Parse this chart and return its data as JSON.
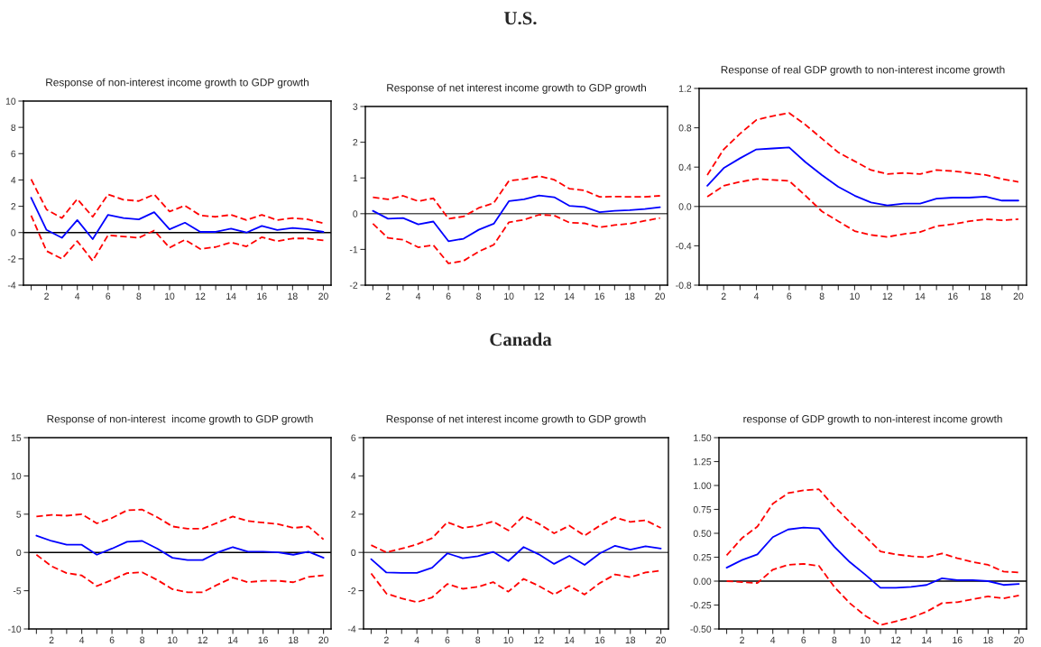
{
  "chart_data": [
    {
      "type": "line",
      "title": "Response of non-interest income growth to GDP growth",
      "annotations": [
        "U.S."
      ],
      "x": [
        1,
        2,
        3,
        4,
        5,
        6,
        7,
        8,
        9,
        10,
        11,
        12,
        13,
        14,
        15,
        16,
        17,
        18,
        19,
        20
      ],
      "xlim": [
        0.5,
        20.5
      ],
      "xticks": [
        {
          "value": 1,
          "label": null
        },
        2,
        {
          "value": 3,
          "label": null
        },
        4,
        {
          "value": 5,
          "label": null
        },
        6,
        {
          "value": 7,
          "label": null
        },
        8,
        {
          "value": 9,
          "label": null
        },
        10,
        {
          "value": 11,
          "label": null
        },
        12,
        {
          "value": 13,
          "label": null
        },
        14,
        {
          "value": 15,
          "label": null
        },
        16,
        {
          "value": 17,
          "label": null
        },
        18,
        {
          "value": 19,
          "label": null
        },
        20
      ],
      "ylim": [
        -4,
        10
      ],
      "yticks": [
        -4,
        -2,
        0,
        2,
        4,
        6,
        8,
        10
      ],
      "grid": false,
      "legend": false,
      "ref_lines": [
        {
          "axis": "y",
          "value": 0,
          "color": "#000000"
        }
      ],
      "series": [
        {
          "color": "#ff0000",
          "line_style": "dashed",
          "values": [
            4.05,
            1.75,
            1.1,
            2.55,
            1.2,
            2.9,
            2.5,
            2.4,
            2.9,
            1.6,
            2.05,
            1.3,
            1.2,
            1.35,
            0.95,
            1.35,
            0.95,
            1.1,
            1.0,
            0.7
          ]
        },
        {
          "color": "#0000ff",
          "line_style": "solid",
          "values": [
            2.65,
            0.2,
            -0.4,
            0.95,
            -0.5,
            1.35,
            1.1,
            1.0,
            1.55,
            0.25,
            0.75,
            0.05,
            0.05,
            0.3,
            0.0,
            0.5,
            0.2,
            0.35,
            0.25,
            0.05
          ]
        },
        {
          "color": "#ff0000",
          "line_style": "dashed",
          "values": [
            1.3,
            -1.4,
            -2.0,
            -0.65,
            -2.15,
            -0.2,
            -0.3,
            -0.4,
            0.15,
            -1.15,
            -0.55,
            -1.25,
            -1.1,
            -0.75,
            -1.05,
            -0.35,
            -0.65,
            -0.45,
            -0.45,
            -0.6
          ]
        }
      ]
    },
    {
      "type": "line",
      "title": "Response of net interest income growth to GDP growth",
      "x": [
        1,
        2,
        3,
        4,
        5,
        6,
        7,
        8,
        9,
        10,
        11,
        12,
        13,
        14,
        15,
        16,
        17,
        18,
        19,
        20
      ],
      "xlim": [
        0.5,
        20.5
      ],
      "xticks": [
        {
          "value": 1,
          "label": null
        },
        2,
        {
          "value": 3,
          "label": null
        },
        4,
        {
          "value": 5,
          "label": null
        },
        6,
        {
          "value": 7,
          "label": null
        },
        8,
        {
          "value": 9,
          "label": null
        },
        10,
        {
          "value": 11,
          "label": null
        },
        12,
        {
          "value": 13,
          "label": null
        },
        14,
        {
          "value": 15,
          "label": null
        },
        16,
        {
          "value": 17,
          "label": null
        },
        18,
        {
          "value": 19,
          "label": null
        },
        20
      ],
      "ylim": [
        -2,
        3
      ],
      "yticks": [
        -2,
        -1,
        0,
        1,
        2,
        3
      ],
      "grid": false,
      "legend": false,
      "ref_lines": [
        {
          "axis": "y",
          "value": 0,
          "color": "#555555"
        }
      ],
      "series": [
        {
          "color": "#ff0000",
          "line_style": "dashed",
          "values": [
            0.46,
            0.4,
            0.5,
            0.35,
            0.43,
            -0.14,
            -0.08,
            0.16,
            0.3,
            0.92,
            0.97,
            1.05,
            0.95,
            0.7,
            0.65,
            0.47,
            0.48,
            0.47,
            0.47,
            0.5
          ]
        },
        {
          "color": "#0000ff",
          "line_style": "solid",
          "values": [
            0.08,
            -0.14,
            -0.12,
            -0.3,
            -0.22,
            -0.77,
            -0.7,
            -0.45,
            -0.28,
            0.35,
            0.4,
            0.51,
            0.46,
            0.22,
            0.19,
            0.04,
            0.08,
            0.1,
            0.13,
            0.18
          ]
        },
        {
          "color": "#ff0000",
          "line_style": "dashed",
          "values": [
            -0.28,
            -0.68,
            -0.73,
            -0.94,
            -0.88,
            -1.39,
            -1.32,
            -1.06,
            -0.87,
            -0.24,
            -0.17,
            -0.03,
            -0.05,
            -0.25,
            -0.27,
            -0.38,
            -0.32,
            -0.28,
            -0.2,
            -0.12
          ]
        }
      ]
    },
    {
      "type": "line",
      "title": "Response of real GDP growth to non-interest income growth",
      "x": [
        1,
        2,
        3,
        4,
        5,
        6,
        7,
        8,
        9,
        10,
        11,
        12,
        13,
        14,
        15,
        16,
        17,
        18,
        19,
        20
      ],
      "xlim": [
        0.5,
        20.5
      ],
      "xticks": [
        {
          "value": 1,
          "label": null
        },
        2,
        {
          "value": 3,
          "label": null
        },
        4,
        {
          "value": 5,
          "label": null
        },
        6,
        {
          "value": 7,
          "label": null
        },
        8,
        {
          "value": 9,
          "label": null
        },
        10,
        {
          "value": 11,
          "label": null
        },
        12,
        {
          "value": 13,
          "label": null
        },
        14,
        {
          "value": 15,
          "label": null
        },
        16,
        {
          "value": 17,
          "label": null
        },
        18,
        {
          "value": 19,
          "label": null
        },
        20
      ],
      "ylim": [
        -0.8,
        1.2
      ],
      "yticks": [
        -0.8,
        -0.4,
        {
          "value": 0,
          "label": "0.0"
        },
        0.4,
        0.8,
        1.2
      ],
      "grid": false,
      "legend": false,
      "ref_lines": [
        {
          "axis": "y",
          "value": 0,
          "color": "#555555"
        }
      ],
      "series": [
        {
          "color": "#ff0000",
          "line_style": "dashed",
          "values": [
            0.32,
            0.58,
            0.74,
            0.88,
            0.92,
            0.95,
            0.83,
            0.69,
            0.55,
            0.46,
            0.37,
            0.33,
            0.34,
            0.33,
            0.37,
            0.36,
            0.34,
            0.32,
            0.28,
            0.25
          ]
        },
        {
          "color": "#0000ff",
          "line_style": "solid",
          "values": [
            0.21,
            0.39,
            0.49,
            0.58,
            0.59,
            0.6,
            0.45,
            0.32,
            0.2,
            0.11,
            0.04,
            0.01,
            0.03,
            0.03,
            0.08,
            0.09,
            0.09,
            0.1,
            0.06,
            0.06
          ]
        },
        {
          "color": "#ff0000",
          "line_style": "dashed",
          "values": [
            0.1,
            0.21,
            0.25,
            0.28,
            0.27,
            0.26,
            0.11,
            -0.05,
            -0.15,
            -0.25,
            -0.29,
            -0.31,
            -0.28,
            -0.26,
            -0.2,
            -0.18,
            -0.15,
            -0.13,
            -0.14,
            -0.13
          ]
        }
      ]
    },
    {
      "type": "line",
      "title": "Response of non-interest  income growth to GDP growth",
      "annotations": [
        "Canada"
      ],
      "x": [
        1,
        2,
        3,
        4,
        5,
        6,
        7,
        8,
        9,
        10,
        11,
        12,
        13,
        14,
        15,
        16,
        17,
        18,
        19,
        20
      ],
      "xlim": [
        0.5,
        20.5
      ],
      "xticks": [
        {
          "value": 1,
          "label": null
        },
        2,
        {
          "value": 3,
          "label": null
        },
        4,
        {
          "value": 5,
          "label": null
        },
        6,
        {
          "value": 7,
          "label": null
        },
        8,
        {
          "value": 9,
          "label": null
        },
        10,
        {
          "value": 11,
          "label": null
        },
        12,
        {
          "value": 13,
          "label": null
        },
        14,
        {
          "value": 15,
          "label": null
        },
        16,
        {
          "value": 17,
          "label": null
        },
        18,
        {
          "value": 19,
          "label": null
        },
        20
      ],
      "ylim": [
        -10,
        15
      ],
      "yticks": [
        -10,
        -5,
        0,
        5,
        10,
        15
      ],
      "grid": false,
      "legend": false,
      "ref_lines": [
        {
          "axis": "y",
          "value": 0,
          "color": "#000000"
        }
      ],
      "series": [
        {
          "color": "#ff0000",
          "line_style": "dashed",
          "values": [
            4.7,
            4.9,
            4.8,
            5.0,
            3.8,
            4.5,
            5.5,
            5.6,
            4.6,
            3.4,
            3.1,
            3.1,
            3.9,
            4.7,
            4.1,
            3.9,
            3.7,
            3.2,
            3.4,
            1.7
          ]
        },
        {
          "color": "#0000ff",
          "line_style": "solid",
          "values": [
            2.2,
            1.5,
            1.0,
            1.0,
            -0.3,
            0.5,
            1.4,
            1.5,
            0.5,
            -0.7,
            -1.0,
            -1.0,
            0.0,
            0.7,
            0.1,
            0.1,
            0.0,
            -0.3,
            0.1,
            -0.7
          ]
        },
        {
          "color": "#ff0000",
          "line_style": "dashed",
          "values": [
            -0.3,
            -1.8,
            -2.7,
            -3.0,
            -4.4,
            -3.6,
            -2.7,
            -2.6,
            -3.6,
            -4.8,
            -5.2,
            -5.2,
            -4.2,
            -3.3,
            -3.9,
            -3.7,
            -3.7,
            -3.9,
            -3.2,
            -3.0
          ]
        }
      ]
    },
    {
      "type": "line",
      "title": "Response of net interest income growth to GDP growth",
      "x": [
        1,
        2,
        3,
        4,
        5,
        6,
        7,
        8,
        9,
        10,
        11,
        12,
        13,
        14,
        15,
        16,
        17,
        18,
        19,
        20
      ],
      "xlim": [
        0.5,
        20.5
      ],
      "xticks": [
        {
          "value": 1,
          "label": null
        },
        2,
        {
          "value": 3,
          "label": null
        },
        4,
        {
          "value": 5,
          "label": null
        },
        6,
        {
          "value": 7,
          "label": null
        },
        8,
        {
          "value": 9,
          "label": null
        },
        10,
        {
          "value": 11,
          "label": null
        },
        12,
        {
          "value": 13,
          "label": null
        },
        14,
        {
          "value": 15,
          "label": null
        },
        16,
        {
          "value": 17,
          "label": null
        },
        18,
        {
          "value": 19,
          "label": null
        },
        20
      ],
      "ylim": [
        -4,
        6
      ],
      "yticks": [
        -4,
        -2,
        0,
        2,
        4,
        6
      ],
      "grid": false,
      "legend": false,
      "ref_lines": [
        {
          "axis": "y",
          "value": 0,
          "color": "#555555"
        }
      ],
      "series": [
        {
          "color": "#ff0000",
          "line_style": "dashed",
          "values": [
            0.38,
            0.0,
            0.2,
            0.42,
            0.75,
            1.58,
            1.28,
            1.4,
            1.62,
            1.15,
            1.9,
            1.5,
            1.0,
            1.4,
            0.88,
            1.4,
            1.83,
            1.6,
            1.68,
            1.28
          ]
        },
        {
          "color": "#0000ff",
          "line_style": "solid",
          "values": [
            -0.35,
            -1.05,
            -1.07,
            -1.07,
            -0.8,
            -0.05,
            -0.3,
            -0.2,
            0.03,
            -0.45,
            0.28,
            -0.1,
            -0.6,
            -0.18,
            -0.65,
            -0.05,
            0.35,
            0.15,
            0.32,
            0.2
          ]
        },
        {
          "color": "#ff0000",
          "line_style": "dashed",
          "values": [
            -1.1,
            -2.15,
            -2.4,
            -2.6,
            -2.35,
            -1.65,
            -1.9,
            -1.8,
            -1.55,
            -2.05,
            -1.38,
            -1.75,
            -2.2,
            -1.75,
            -2.2,
            -1.6,
            -1.15,
            -1.3,
            -1.05,
            -0.95
          ]
        }
      ]
    },
    {
      "type": "line",
      "title": "response of GDP growth to non-interest income growth",
      "x": [
        1,
        2,
        3,
        4,
        5,
        6,
        7,
        8,
        9,
        10,
        11,
        12,
        13,
        14,
        15,
        16,
        17,
        18,
        19,
        20
      ],
      "xlim": [
        0.5,
        20.5
      ],
      "xticks": [
        {
          "value": 1,
          "label": null
        },
        2,
        {
          "value": 3,
          "label": null
        },
        4,
        {
          "value": 5,
          "label": null
        },
        6,
        {
          "value": 7,
          "label": null
        },
        8,
        {
          "value": 9,
          "label": null
        },
        10,
        {
          "value": 11,
          "label": null
        },
        12,
        {
          "value": 13,
          "label": null
        },
        14,
        {
          "value": 15,
          "label": null
        },
        16,
        {
          "value": 17,
          "label": null
        },
        18,
        {
          "value": 19,
          "label": null
        },
        20
      ],
      "ylim": [
        -0.5,
        1.5
      ],
      "yticks": [
        {
          "value": -0.5,
          "label": "-0.50"
        },
        {
          "value": -0.25,
          "label": "-0.25"
        },
        {
          "value": 0,
          "label": "0.00"
        },
        {
          "value": 0.25,
          "label": "0.25"
        },
        {
          "value": 0.5,
          "label": "0.50"
        },
        {
          "value": 0.75,
          "label": "0.75"
        },
        {
          "value": 1,
          "label": "1.00"
        },
        {
          "value": 1.25,
          "label": "1.25"
        },
        {
          "value": 1.5,
          "label": "1.50"
        }
      ],
      "grid": false,
      "legend": false,
      "ref_lines": [
        {
          "axis": "y",
          "value": 0,
          "color": "#000000"
        }
      ],
      "series": [
        {
          "color": "#ff0000",
          "line_style": "dashed",
          "values": [
            0.27,
            0.45,
            0.57,
            0.81,
            0.92,
            0.95,
            0.96,
            0.78,
            0.62,
            0.47,
            0.31,
            0.28,
            0.26,
            0.25,
            0.29,
            0.24,
            0.2,
            0.17,
            0.1,
            0.09
          ]
        },
        {
          "color": "#0000ff",
          "line_style": "solid",
          "values": [
            0.14,
            0.22,
            0.28,
            0.46,
            0.54,
            0.56,
            0.55,
            0.36,
            0.2,
            0.07,
            -0.07,
            -0.07,
            -0.06,
            -0.04,
            0.03,
            0.01,
            0.01,
            0.0,
            -0.04,
            -0.03
          ]
        },
        {
          "color": "#ff0000",
          "line_style": "dashed",
          "values": [
            0.0,
            -0.01,
            -0.02,
            0.12,
            0.17,
            0.18,
            0.16,
            -0.06,
            -0.23,
            -0.36,
            -0.46,
            -0.42,
            -0.38,
            -0.32,
            -0.23,
            -0.22,
            -0.19,
            -0.16,
            -0.18,
            -0.15
          ]
        }
      ]
    }
  ]
}
